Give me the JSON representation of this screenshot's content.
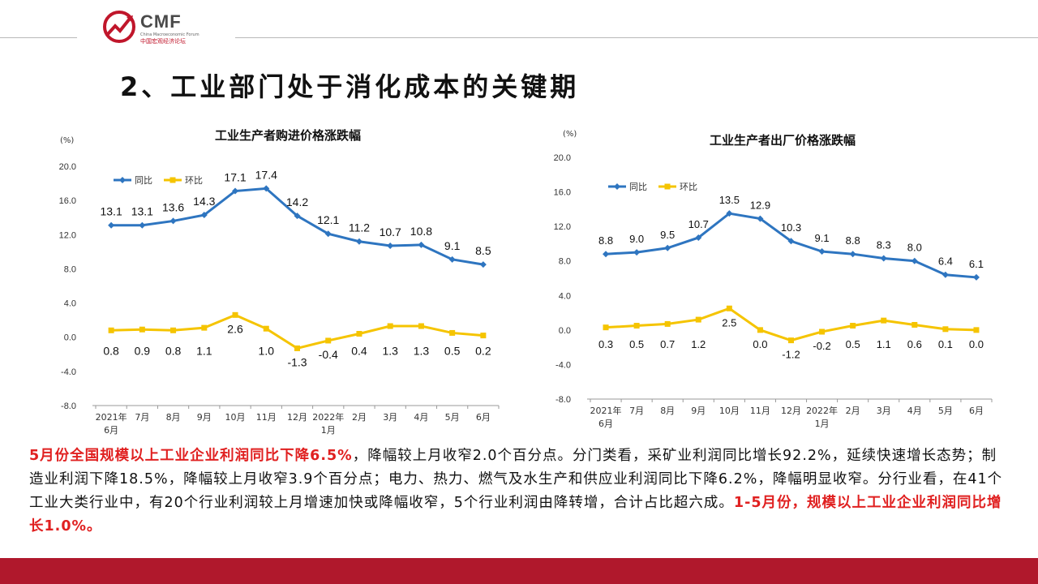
{
  "header": {
    "brand": "CMF",
    "subtitle": "中国宏观经济论坛",
    "subtitle_en": "China Macroeconomic Forum"
  },
  "slide_title": "2、工业部门处于消化成本的关键期",
  "colors": {
    "series_yoy": "#2e75c0",
    "series_mom": "#f5c400",
    "accent_red": "#b0182c"
  },
  "chart_data": [
    {
      "type": "line",
      "title": "工业生产者购进价格涨跌幅",
      "ylabel": "(%)",
      "ylim": [
        -8.0,
        20.0
      ],
      "yticks": [
        "20.0",
        "16.0",
        "12.0",
        "8.0",
        "4.0",
        "0.0",
        "-4.0",
        "-8.0"
      ],
      "categories": [
        "2021年\n6月",
        "7月",
        "8月",
        "9月",
        "10月",
        "11月",
        "12月",
        "2022年\n1月",
        "2月",
        "3月",
        "4月",
        "5月",
        "6月"
      ],
      "series": [
        {
          "name": "同比",
          "values": [
            13.1,
            13.1,
            13.6,
            14.3,
            17.1,
            17.4,
            14.2,
            12.1,
            11.2,
            10.7,
            10.8,
            9.1,
            8.5
          ],
          "labels": [
            "13.1",
            "13.1",
            "13.6",
            "14.3",
            "17.1",
            "17.4",
            "14.2",
            "12.1",
            "11.2",
            "10.7",
            "10.8",
            "9.1",
            "8.5"
          ]
        },
        {
          "name": "环比",
          "values": [
            0.8,
            0.9,
            0.8,
            1.1,
            2.6,
            1.0,
            -1.3,
            -0.4,
            0.4,
            1.3,
            1.3,
            0.5,
            0.2
          ],
          "labels": [
            "0.8",
            "0.9",
            "0.8",
            "1.1",
            "2.6",
            "1.0",
            "-1.3",
            "-0.4",
            "0.4",
            "1.3",
            "1.3",
            "0.5",
            "0.2"
          ]
        }
      ],
      "legend": "top-left"
    },
    {
      "type": "line",
      "title": "工业生产者出厂价格涨跌幅",
      "ylabel": "(%)",
      "ylim": [
        -8.0,
        20.0
      ],
      "yticks": [
        "20.0",
        "16.0",
        "12.0",
        "8.0",
        "4.0",
        "0.0",
        "-4.0",
        "-8.0"
      ],
      "categories": [
        "2021年\n6月",
        "7月",
        "8月",
        "9月",
        "10月",
        "11月",
        "12月",
        "2022年\n1月",
        "2月",
        "3月",
        "4月",
        "5月",
        "6月"
      ],
      "series": [
        {
          "name": "同比",
          "values": [
            8.8,
            9.0,
            9.5,
            10.7,
            13.5,
            12.9,
            10.3,
            9.1,
            8.8,
            8.3,
            8.0,
            6.4,
            6.1
          ],
          "labels": [
            "8.8",
            "9.0",
            "9.5",
            "10.7",
            "13.5",
            "12.9",
            "10.3",
            "9.1",
            "8.8",
            "8.3",
            "8.0",
            "6.4",
            "6.1"
          ]
        },
        {
          "name": "环比",
          "values": [
            0.3,
            0.5,
            0.7,
            1.2,
            2.5,
            0.0,
            -1.2,
            -0.2,
            0.5,
            1.1,
            0.6,
            0.1,
            0.0
          ],
          "labels": [
            "0.3",
            "0.5",
            "0.7",
            "1.2",
            "2.5",
            "0.0",
            "-1.2",
            "-0.2",
            "0.5",
            "1.1",
            "0.6",
            "0.1",
            "0.0"
          ]
        }
      ],
      "legend": "top-left"
    }
  ],
  "description": {
    "p1_red": "5月份全国规模以上工业企业利润同比下降6.5%",
    "p2": "，降幅较上月收窄2.0个百分点。分门类看，采矿业利润同比增长92.2%，延续快速增长态势；制造业利润下降18.5%，降幅较上月收窄3.9个百分点；电力、热力、燃气及水生产和供应业利润同比下降6.2%，降幅明显收窄。分行业看，在41个工业大类行业中，有20个行业利润较上月增速加快或降幅收窄，5个行业利润由降转增，合计占比超六成。",
    "p3_red": "1-5月份，规模以上工业企业利润同比增长1.0%。"
  }
}
